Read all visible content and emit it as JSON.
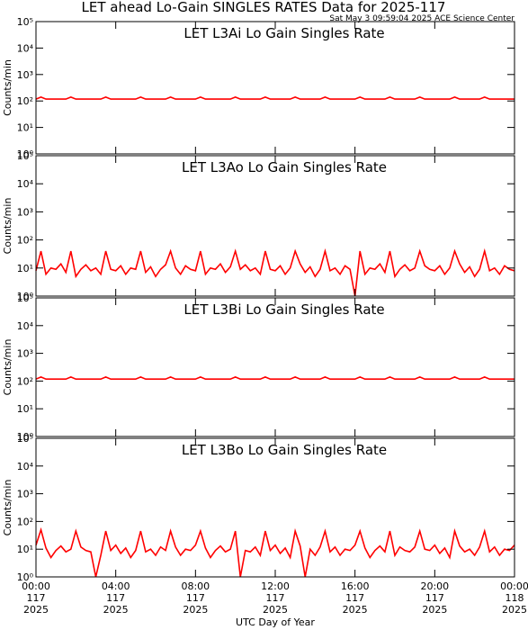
{
  "header": {
    "title": "LET ahead Lo-Gain SINGLES RATES Data for 2025-117",
    "timestamp": "Sat May  3 09:59:04 2025 ACE Science Center"
  },
  "chart_data": [
    {
      "type": "line",
      "title": "LET L3Ai Lo Gain Singles Rate",
      "ylabel": "Counts/min",
      "log_y": true,
      "color": "#ff0000",
      "ylim": [
        1,
        100000
      ],
      "yticks": [
        {
          "value": 1,
          "label": "10⁰"
        },
        {
          "value": 10,
          "label": "10¹"
        },
        {
          "value": 100,
          "label": "10²"
        },
        {
          "value": 1000,
          "label": "10³"
        },
        {
          "value": 10000,
          "label": "10⁴"
        },
        {
          "value": 100000,
          "label": "10⁵"
        }
      ],
      "xlim": [
        0,
        24
      ],
      "xticks": [
        0,
        4,
        8,
        12,
        16,
        20,
        24
      ],
      "x": [
        0,
        0.25,
        0.5,
        0.75,
        1,
        1.25,
        1.5,
        1.75,
        2,
        2.25,
        2.5,
        2.75,
        3,
        3.25,
        3.5,
        3.75,
        4,
        4.25,
        4.5,
        4.75,
        5,
        5.25,
        5.5,
        5.75,
        6,
        6.25,
        6.5,
        6.75,
        7,
        7.25,
        7.5,
        7.75,
        8,
        8.25,
        8.5,
        8.75,
        9,
        9.25,
        9.5,
        9.75,
        10,
        10.25,
        10.5,
        10.75,
        11,
        11.25,
        11.5,
        11.75,
        12,
        12.25,
        12.5,
        12.75,
        13,
        13.25,
        13.5,
        13.75,
        14,
        14.25,
        14.5,
        14.75,
        15,
        15.25,
        15.5,
        15.75,
        16,
        16.25,
        16.5,
        16.75,
        17,
        17.25,
        17.5,
        17.75,
        18,
        18.25,
        18.5,
        18.75,
        19,
        19.25,
        19.5,
        19.75,
        20,
        20.25,
        20.5,
        20.75,
        21,
        21.25,
        21.5,
        21.75,
        22,
        22.25,
        22.5,
        22.75,
        23,
        23.25,
        23.5,
        23.75,
        24
      ],
      "values": [
        118,
        140,
        118,
        118,
        118,
        118,
        118,
        140,
        118,
        118,
        118,
        118,
        118,
        118,
        140,
        118,
        118,
        118,
        118,
        118,
        118,
        140,
        118,
        118,
        118,
        118,
        118,
        140,
        118,
        118,
        118,
        118,
        118,
        140,
        118,
        118,
        118,
        118,
        118,
        118,
        140,
        118,
        118,
        118,
        118,
        118,
        140,
        118,
        118,
        118,
        118,
        118,
        140,
        118,
        118,
        118,
        118,
        118,
        140,
        118,
        118,
        118,
        118,
        118,
        118,
        140,
        118,
        118,
        118,
        118,
        118,
        140,
        118,
        118,
        118,
        118,
        118,
        140,
        118,
        118,
        118,
        118,
        118,
        118,
        140,
        118,
        118,
        118,
        118,
        118,
        140,
        118,
        118,
        118,
        118,
        118,
        118
      ]
    },
    {
      "type": "line",
      "title": "LET L3Ao Lo Gain Singles Rate",
      "ylabel": "Counts/min",
      "log_y": true,
      "color": "#ff0000",
      "ylim": [
        1,
        100000
      ],
      "yticks": [
        {
          "value": 1,
          "label": "10⁰"
        },
        {
          "value": 10,
          "label": "10¹"
        },
        {
          "value": 100,
          "label": "10²"
        },
        {
          "value": 1000,
          "label": "10³"
        },
        {
          "value": 10000,
          "label": "10⁴"
        },
        {
          "value": 100000,
          "label": "10⁵"
        }
      ],
      "xlim": [
        0,
        24
      ],
      "xticks": [
        0,
        4,
        8,
        12,
        16,
        20,
        24
      ],
      "x": [
        0,
        0.25,
        0.5,
        0.75,
        1,
        1.25,
        1.5,
        1.75,
        2,
        2.25,
        2.5,
        2.75,
        3,
        3.25,
        3.5,
        3.75,
        4,
        4.25,
        4.5,
        4.75,
        5,
        5.25,
        5.5,
        5.75,
        6,
        6.25,
        6.5,
        6.75,
        7,
        7.25,
        7.5,
        7.75,
        8,
        8.25,
        8.5,
        8.75,
        9,
        9.25,
        9.5,
        9.75,
        10,
        10.25,
        10.5,
        10.75,
        11,
        11.25,
        11.5,
        11.75,
        12,
        12.25,
        12.5,
        12.75,
        13,
        13.25,
        13.5,
        13.75,
        14,
        14.25,
        14.5,
        14.75,
        15,
        15.25,
        15.5,
        15.75,
        16,
        16.25,
        16.5,
        16.75,
        17,
        17.25,
        17.5,
        17.75,
        18,
        18.25,
        18.5,
        18.75,
        19,
        19.25,
        19.5,
        19.75,
        20,
        20.25,
        20.5,
        20.75,
        21,
        21.25,
        21.5,
        21.75,
        22,
        22.25,
        22.5,
        22.75,
        23,
        23.25,
        23.5,
        23.75,
        24
      ],
      "values": [
        8,
        40,
        6,
        10,
        9,
        14,
        7,
        40,
        5,
        9,
        13,
        8,
        10,
        6,
        40,
        9,
        8,
        12,
        6,
        10,
        9,
        40,
        7,
        11,
        5,
        9,
        13,
        40,
        10,
        6,
        12,
        9,
        8,
        40,
        6,
        10,
        9,
        14,
        7,
        11,
        40,
        9,
        13,
        8,
        10,
        6,
        40,
        9,
        8,
        12,
        6,
        10,
        40,
        14,
        7,
        11,
        5,
        9,
        40,
        8,
        10,
        6,
        12,
        9,
        1,
        40,
        6,
        10,
        9,
        14,
        7,
        40,
        5,
        9,
        13,
        8,
        10,
        40,
        12,
        9,
        8,
        12,
        6,
        10,
        40,
        14,
        7,
        11,
        5,
        9,
        40,
        8,
        10,
        6,
        12,
        9,
        8
      ]
    },
    {
      "type": "line",
      "title": "LET L3Bi Lo Gain Singles Rate",
      "ylabel": "Counts/min",
      "log_y": true,
      "color": "#ff0000",
      "ylim": [
        1,
        100000
      ],
      "yticks": [
        {
          "value": 1,
          "label": "10⁰"
        },
        {
          "value": 10,
          "label": "10¹"
        },
        {
          "value": 100,
          "label": "10²"
        },
        {
          "value": 1000,
          "label": "10³"
        },
        {
          "value": 10000,
          "label": "10⁴"
        },
        {
          "value": 100000,
          "label": "10⁵"
        }
      ],
      "xlim": [
        0,
        24
      ],
      "xticks": [
        0,
        4,
        8,
        12,
        16,
        20,
        24
      ],
      "x": [
        0,
        0.25,
        0.5,
        0.75,
        1,
        1.25,
        1.5,
        1.75,
        2,
        2.25,
        2.5,
        2.75,
        3,
        3.25,
        3.5,
        3.75,
        4,
        4.25,
        4.5,
        4.75,
        5,
        5.25,
        5.5,
        5.75,
        6,
        6.25,
        6.5,
        6.75,
        7,
        7.25,
        7.5,
        7.75,
        8,
        8.25,
        8.5,
        8.75,
        9,
        9.25,
        9.5,
        9.75,
        10,
        10.25,
        10.5,
        10.75,
        11,
        11.25,
        11.5,
        11.75,
        12,
        12.25,
        12.5,
        12.75,
        13,
        13.25,
        13.5,
        13.75,
        14,
        14.25,
        14.5,
        14.75,
        15,
        15.25,
        15.5,
        15.75,
        16,
        16.25,
        16.5,
        16.75,
        17,
        17.25,
        17.5,
        17.75,
        18,
        18.25,
        18.5,
        18.75,
        19,
        19.25,
        19.5,
        19.75,
        20,
        20.25,
        20.5,
        20.75,
        21,
        21.25,
        21.5,
        21.75,
        22,
        22.25,
        22.5,
        22.75,
        23,
        23.25,
        23.5,
        23.75,
        24
      ],
      "values": [
        118,
        140,
        118,
        118,
        118,
        118,
        118,
        140,
        118,
        118,
        118,
        118,
        118,
        118,
        140,
        118,
        118,
        118,
        118,
        118,
        118,
        140,
        118,
        118,
        118,
        118,
        118,
        140,
        118,
        118,
        118,
        118,
        118,
        140,
        118,
        118,
        118,
        118,
        118,
        118,
        140,
        118,
        118,
        118,
        118,
        118,
        140,
        118,
        118,
        118,
        118,
        118,
        140,
        118,
        118,
        118,
        118,
        118,
        140,
        118,
        118,
        118,
        118,
        118,
        118,
        140,
        118,
        118,
        118,
        118,
        118,
        140,
        118,
        118,
        118,
        118,
        118,
        140,
        118,
        118,
        118,
        118,
        118,
        118,
        140,
        118,
        118,
        118,
        118,
        118,
        140,
        118,
        118,
        118,
        118,
        118,
        118
      ]
    },
    {
      "type": "line",
      "title": "LET L3Bo Lo Gain Singles Rate",
      "ylabel": "Counts/min",
      "log_y": true,
      "color": "#ff0000",
      "ylim": [
        1,
        100000
      ],
      "yticks": [
        {
          "value": 1,
          "label": "10⁰"
        },
        {
          "value": 10,
          "label": "10¹"
        },
        {
          "value": 100,
          "label": "10²"
        },
        {
          "value": 1000,
          "label": "10³"
        },
        {
          "value": 10000,
          "label": "10⁴"
        },
        {
          "value": 100000,
          "label": "10⁵"
        }
      ],
      "xlabel": "UTC Day of Year",
      "xlim": [
        0,
        24
      ],
      "xticks": [
        {
          "value": 0,
          "label": [
            "00:00",
            "117",
            "2025"
          ]
        },
        {
          "value": 4,
          "label": [
            "04:00",
            "117",
            "2025"
          ]
        },
        {
          "value": 8,
          "label": [
            "08:00",
            "117",
            "2025"
          ]
        },
        {
          "value": 12,
          "label": [
            "12:00",
            "117",
            "2025"
          ]
        },
        {
          "value": 16,
          "label": [
            "16:00",
            "117",
            "2025"
          ]
        },
        {
          "value": 20,
          "label": [
            "20:00",
            "117",
            "2025"
          ]
        },
        {
          "value": 24,
          "label": [
            "00:00",
            "118",
            "2025"
          ]
        }
      ],
      "x": [
        0,
        0.25,
        0.5,
        0.75,
        1,
        1.25,
        1.5,
        1.75,
        2,
        2.25,
        2.5,
        2.75,
        3,
        3.25,
        3.5,
        3.75,
        4,
        4.25,
        4.5,
        4.75,
        5,
        5.25,
        5.5,
        5.75,
        6,
        6.25,
        6.5,
        6.75,
        7,
        7.25,
        7.5,
        7.75,
        8,
        8.25,
        8.5,
        8.75,
        9,
        9.25,
        9.5,
        9.75,
        10,
        10.25,
        10.5,
        10.75,
        11,
        11.25,
        11.5,
        11.75,
        12,
        12.25,
        12.5,
        12.75,
        13,
        13.25,
        13.5,
        13.75,
        14,
        14.25,
        14.5,
        14.75,
        15,
        15.25,
        15.5,
        15.75,
        16,
        16.25,
        16.5,
        16.75,
        17,
        17.25,
        17.5,
        17.75,
        18,
        18.25,
        18.5,
        18.75,
        19,
        19.25,
        19.5,
        19.75,
        20,
        20.25,
        20.5,
        20.75,
        21,
        21.25,
        21.5,
        21.75,
        22,
        22.25,
        22.5,
        22.75,
        23,
        23.25,
        23.5,
        23.75,
        24
      ],
      "values": [
        14,
        50,
        11,
        5,
        9,
        13,
        8,
        10,
        45,
        12,
        9,
        8,
        1,
        6,
        45,
        9,
        14,
        7,
        11,
        5,
        9,
        45,
        8,
        10,
        6,
        12,
        9,
        45,
        12,
        6,
        10,
        9,
        14,
        45,
        11,
        5,
        9,
        13,
        8,
        10,
        45,
        1,
        9,
        8,
        12,
        6,
        45,
        9,
        14,
        7,
        11,
        5,
        45,
        13,
        1,
        10,
        6,
        12,
        45,
        8,
        12,
        6,
        10,
        9,
        14,
        45,
        11,
        5,
        9,
        13,
        8,
        45,
        6,
        12,
        9,
        8,
        12,
        45,
        10,
        9,
        14,
        7,
        11,
        5,
        45,
        13,
        8,
        10,
        6,
        12,
        45,
        8,
        12,
        6,
        10,
        9,
        14
      ]
    }
  ]
}
